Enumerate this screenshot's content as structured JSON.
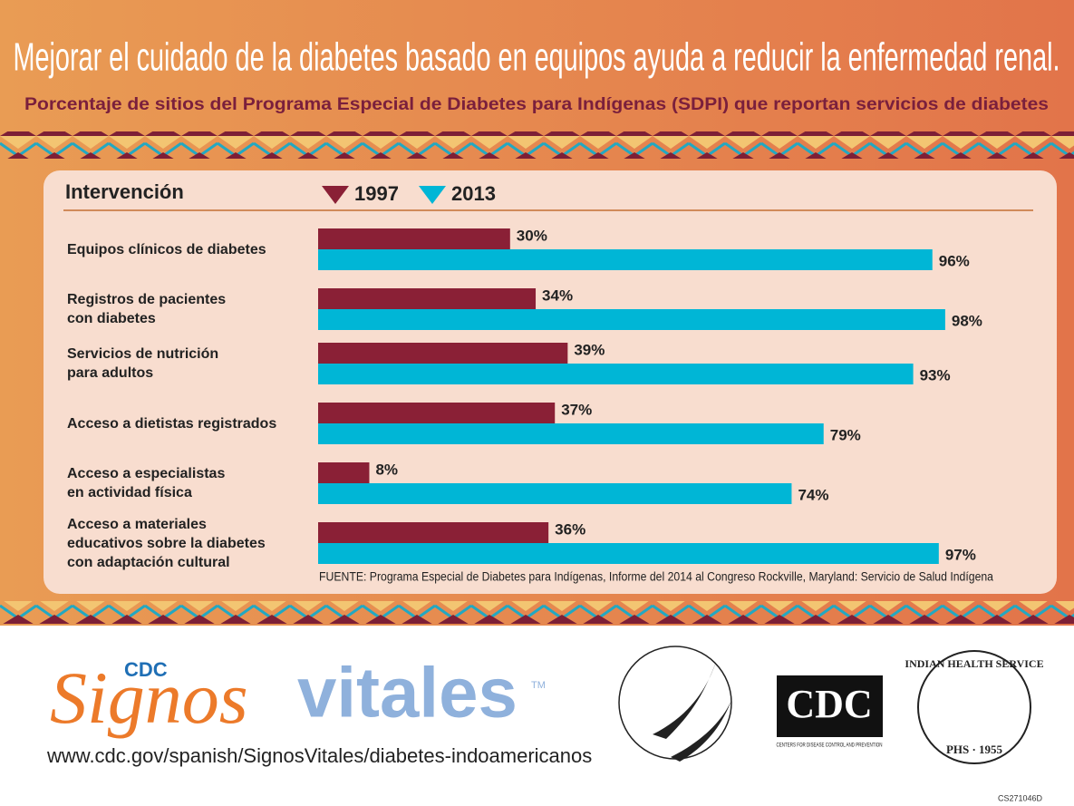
{
  "chart_data": {
    "type": "bar",
    "orientation": "horizontal",
    "title": "Mejorar el cuidado de la diabetes basado en equipos ayuda a reducir la enfermedad renal.",
    "subtitle": "Porcentaje de sitios del Programa Especial de Diabetes para Indígenas (SDPI) que reportan servicios de diabetes",
    "category_header": "Intervención",
    "categories": [
      "Equipos clínicos de diabetes",
      "Registros de pacientes\ncon diabetes",
      "Servicios de nutrición\npara adultos",
      "Acceso a dietistas registrados",
      "Acceso a especialistas\nen actividad física",
      "Acceso a materiales\neducativos sobre la diabetes\ncon adaptación cultural"
    ],
    "series": [
      {
        "name": "1997",
        "color": "#8a2036",
        "values": [
          30,
          34,
          39,
          37,
          8,
          36
        ],
        "value_labels": [
          "30%",
          "34%",
          "39%",
          "37%",
          "8%",
          "36%"
        ]
      },
      {
        "name": "2013",
        "color": "#00b6d6",
        "values": [
          96,
          98,
          93,
          79,
          74,
          97
        ],
        "value_labels": [
          "96%",
          "98%",
          "93%",
          "79%",
          "74%",
          "97%"
        ]
      }
    ],
    "source": "FUENTE: Programa Especial de Diabetes para Indígenas, Informe del 2014 al Congreso Rockville, Maryland: Servicio de Salud Indígena"
  },
  "footer": {
    "brand_prefix": "CDC",
    "brand_signos": "Signos",
    "brand_vitales": "vitales",
    "brand_tm": "TM",
    "url": "www.cdc.gov/spanish/SignosVitales/diabetes-indoamericanos",
    "cdc_logo": "CDC",
    "cdc_logo_caption": "CENTERS FOR DISEASE CONTROL AND PREVENTION",
    "ihs_logo": "INDIAN HEALTH SERVICE",
    "ihs_logo_sub": "PHS · 1955",
    "code": "CS271046D"
  }
}
